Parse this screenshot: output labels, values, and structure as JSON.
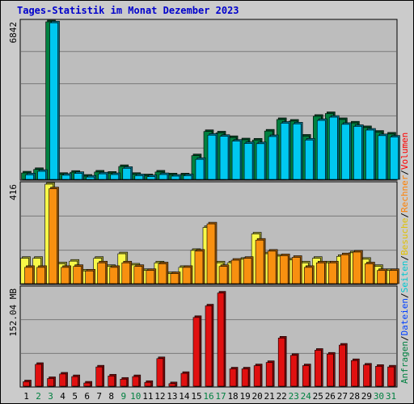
{
  "title": "Tages-Statistik im Monat Dezember 2023",
  "chart_data": [
    {
      "type": "bar",
      "panel": "top",
      "ymax_label": "6842",
      "ylim": [
        0,
        6842
      ],
      "grid": true,
      "categories": [
        "1",
        "2",
        "3",
        "4",
        "5",
        "6",
        "7",
        "8",
        "9",
        "10",
        "11",
        "12",
        "13",
        "14",
        "15",
        "16",
        "17",
        "18",
        "19",
        "20",
        "21",
        "22",
        "23",
        "24",
        "25",
        "26",
        "27",
        "28",
        "29",
        "30",
        "31"
      ],
      "series": [
        {
          "name": "Anfragen",
          "color": "#008040",
          "values": [
            280,
            430,
            6842,
            220,
            310,
            140,
            320,
            270,
            560,
            220,
            160,
            320,
            200,
            200,
            1030,
            2080,
            2020,
            1820,
            1720,
            1710,
            2100,
            2600,
            2530,
            1880,
            2740,
            2860,
            2600,
            2450,
            2250,
            2050,
            1970
          ]
        },
        {
          "name": "Dateien",
          "color": "#00c8f0",
          "values": [
            200,
            350,
            6800,
            180,
            260,
            100,
            240,
            210,
            480,
            160,
            120,
            210,
            140,
            160,
            870,
            1920,
            1870,
            1660,
            1560,
            1550,
            1860,
            2440,
            2410,
            1710,
            2560,
            2700,
            2390,
            2300,
            2140,
            1900,
            1840
          ]
        }
      ]
    },
    {
      "type": "bar",
      "panel": "middle",
      "ymax_label": "416",
      "ylim": [
        0,
        416
      ],
      "grid": true,
      "categories": [
        "1",
        "2",
        "3",
        "4",
        "5",
        "6",
        "7",
        "8",
        "9",
        "10",
        "11",
        "12",
        "13",
        "14",
        "15",
        "16",
        "17",
        "18",
        "19",
        "20",
        "21",
        "22",
        "23",
        "24",
        "25",
        "26",
        "27",
        "28",
        "29",
        "30",
        "31"
      ],
      "series": [
        {
          "name": "Besuche",
          "color": "#f8f848",
          "values": [
            106,
            106,
            416,
            83,
            94,
            53,
            106,
            72,
            125,
            78,
            55,
            87,
            42,
            68,
            139,
            235,
            87,
            87,
            102,
            208,
            125,
            115,
            99,
            87,
            106,
            87,
            114,
            129,
            102,
            72,
            55
          ]
        },
        {
          "name": "Seiten",
          "color": "#f89010",
          "values": [
            68,
            68,
            397,
            68,
            72,
            53,
            87,
            68,
            87,
            72,
            55,
            83,
            42,
            68,
            136,
            250,
            72,
            98,
            106,
            182,
            136,
            117,
            110,
            68,
            87,
            87,
            121,
            132,
            83,
            55,
            55
          ]
        }
      ]
    },
    {
      "type": "bar",
      "panel": "bottom",
      "ymax_label": "152.04 MB",
      "ylim": [
        0,
        152.04
      ],
      "grid": true,
      "categories": [
        "1",
        "2",
        "3",
        "4",
        "5",
        "6",
        "7",
        "8",
        "9",
        "10",
        "11",
        "12",
        "13",
        "14",
        "15",
        "16",
        "17",
        "18",
        "19",
        "20",
        "21",
        "22",
        "23",
        "24",
        "25",
        "26",
        "27",
        "28",
        "29",
        "30",
        "31"
      ],
      "series": [
        {
          "name": "Volumen",
          "color": "#e01010",
          "values": [
            7,
            34,
            12,
            19,
            15,
            5,
            30,
            16,
            11,
            15,
            6,
            43,
            4,
            20,
            107,
            125,
            145,
            27,
            27,
            32,
            37,
            75,
            48,
            32,
            56,
            50,
            64,
            40,
            33,
            31,
            30
          ]
        }
      ]
    }
  ],
  "legend_right": [
    {
      "text": "Anfragen",
      "color": "#008040"
    },
    {
      "text": "/",
      "color": "#000000"
    },
    {
      "text": "Dateien",
      "color": "#0040ff"
    },
    {
      "text": "/",
      "color": "#000000"
    },
    {
      "text": "Seiten",
      "color": "#00c8d0"
    },
    {
      "text": "/",
      "color": "#000000"
    },
    {
      "text": "Besuche",
      "color": "#e0c000"
    },
    {
      "text": "/",
      "color": "#000000"
    },
    {
      "text": "Rechner",
      "color": "#ff8000"
    },
    {
      "text": "/",
      "color": "#000000"
    },
    {
      "text": "Volumen",
      "color": "#ff0000"
    }
  ],
  "weekend_days": [
    "2",
    "3",
    "9",
    "10",
    "16",
    "17",
    "23",
    "24",
    "30",
    "31"
  ],
  "colors": {
    "weekday": "#000000",
    "weekend": "#008040",
    "title": "#0000cc",
    "background": "#cbcbcb",
    "plot": "#bdbdbd"
  }
}
